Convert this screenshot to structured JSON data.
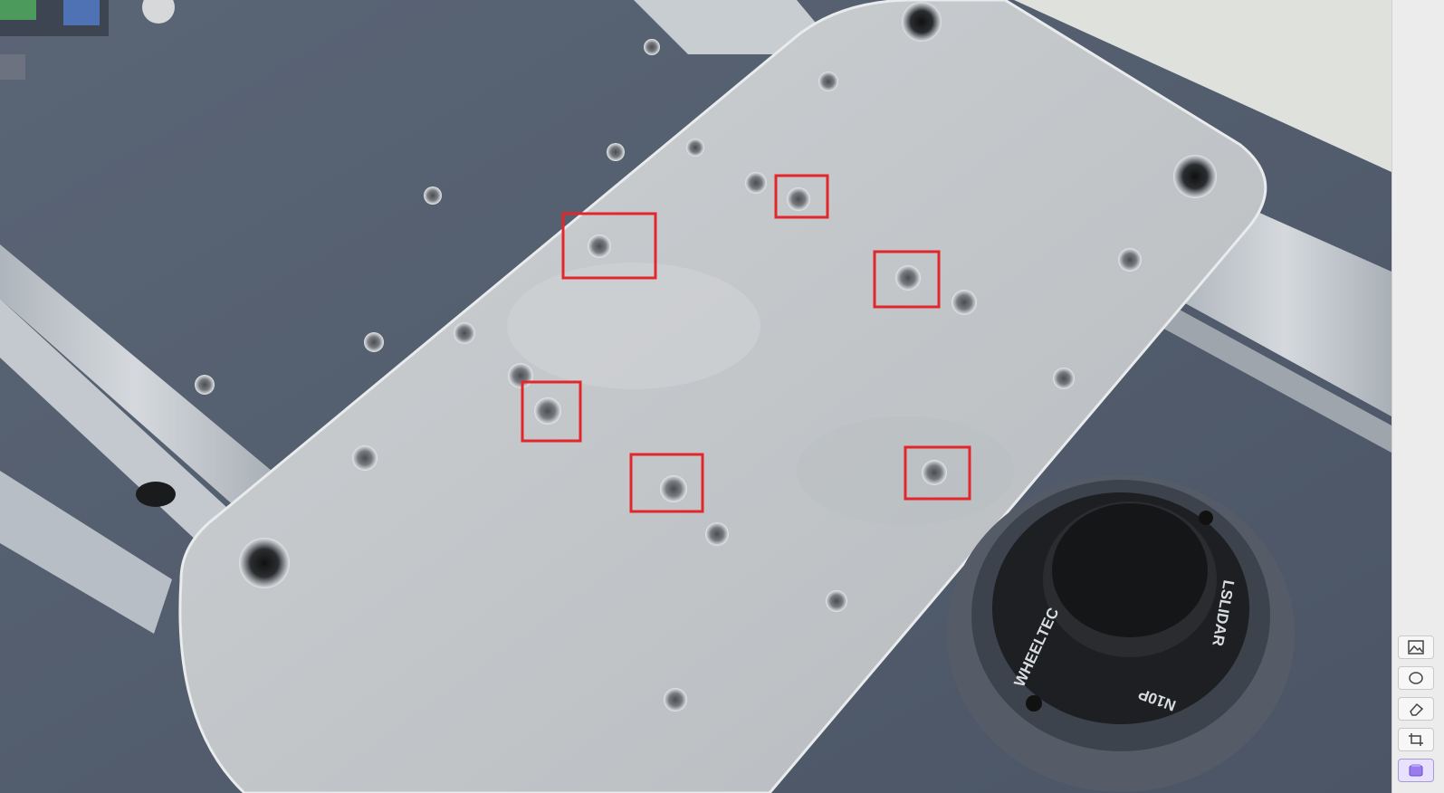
{
  "photo": {
    "brand_text": "WHEELTEC",
    "model_text": "N10P",
    "slider_text": "LSLIDAR"
  },
  "annotations": {
    "color": "#e3262b",
    "box_count": 6
  },
  "toolbar": {
    "tools": [
      {
        "name": "image-annotate-tool",
        "icon": "image-icon"
      },
      {
        "name": "ellipse-tool",
        "icon": "ellipse-icon"
      },
      {
        "name": "eraser-tool",
        "icon": "eraser-icon"
      },
      {
        "name": "crop-tool",
        "icon": "crop-icon"
      },
      {
        "name": "layers-tool",
        "icon": "layers-icon",
        "active": true
      }
    ]
  }
}
